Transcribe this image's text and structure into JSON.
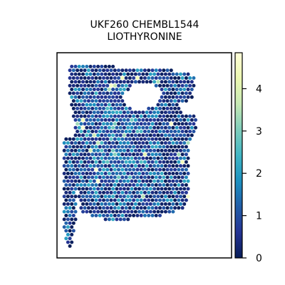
{
  "chart_data": {
    "type": "scatter",
    "title_lines": [
      "UKF260 CHEMBL1544",
      "LIOTHYRONINE"
    ],
    "xlabel": "",
    "ylabel": "",
    "grid": false,
    "colormap": {
      "name": "YlGnBu",
      "stops": [
        "#081d58",
        "#253494",
        "#225ea8",
        "#1d91c0",
        "#41b6c4",
        "#7fcdbb",
        "#c7e9b4",
        "#edf8b1",
        "#ffffd9"
      ],
      "vmin": 0,
      "vmax": 4.85,
      "ticks": [
        0,
        1,
        2,
        3,
        4
      ],
      "tick_labels": [
        "0",
        "1",
        "2",
        "3",
        "4"
      ]
    },
    "tissue_outline": [
      [
        0.07,
        0.05
      ],
      [
        0.3,
        0.05
      ],
      [
        0.33,
        0.07
      ],
      [
        0.75,
        0.09
      ],
      [
        0.79,
        0.12
      ],
      [
        0.78,
        0.23
      ],
      [
        0.8,
        0.26
      ],
      [
        0.8,
        0.38
      ],
      [
        0.76,
        0.45
      ],
      [
        0.76,
        0.7
      ],
      [
        0.73,
        0.76
      ],
      [
        0.58,
        0.8
      ],
      [
        0.3,
        0.82
      ],
      [
        0.15,
        0.78
      ],
      [
        0.12,
        0.72
      ],
      [
        0.1,
        0.35
      ],
      [
        0.07,
        0.2
      ]
    ],
    "tissue_outline_left": [
      [
        0.04,
        0.42
      ],
      [
        0.11,
        0.4
      ],
      [
        0.11,
        0.8
      ],
      [
        0.09,
        0.94
      ],
      [
        0.06,
        0.96
      ],
      [
        0.04,
        0.88
      ]
    ],
    "holes": [
      [
        [
          0.38,
          0.2
        ],
        [
          0.45,
          0.15
        ],
        [
          0.55,
          0.15
        ],
        [
          0.61,
          0.19
        ],
        [
          0.57,
          0.26
        ],
        [
          0.45,
          0.29
        ],
        [
          0.38,
          0.25
        ]
      ],
      [
        [
          0.7,
          0.24
        ],
        [
          0.8,
          0.23
        ],
        [
          0.8,
          0.31
        ],
        [
          0.72,
          0.29
        ]
      ]
    ],
    "value_distribution": {
      "typical": 0.8,
      "high_region_mean": 1.8,
      "max": 4.85
    },
    "point_count_approx": 1400
  }
}
